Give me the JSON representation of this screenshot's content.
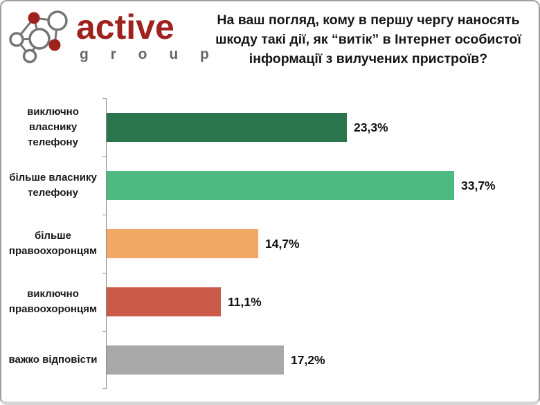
{
  "logo": {
    "brand": "active",
    "sub": "g r o u p",
    "brand_color": "#9e221e",
    "sub_color": "#666666",
    "icon": "network-nodes-icon",
    "icon_node_color": "#9e221e",
    "icon_line_color": "#757575"
  },
  "title": {
    "line1": "На ваш погляд, кому в першу чергу наносять",
    "line2": "шкоду такі дії, як “витік” в Інтернет особистої",
    "line3": "інформації з вилучених пристроїв?"
  },
  "chart_data": {
    "type": "bar",
    "orientation": "horizontal",
    "categories": [
      "виключно власнику телефону",
      "більше власнику телефону",
      "більше правоохоронцям",
      "виключно правоохоронцям",
      "важко відповісти"
    ],
    "values": [
      23.3,
      33.7,
      14.7,
      11.1,
      17.2
    ],
    "value_labels": [
      "23,3%",
      "33,7%",
      "14,7%",
      "11,1%",
      "17,2%"
    ],
    "bar_colors": [
      "#2a754c",
      "#4eba82",
      "#f2a967",
      "#ca5b4a",
      "#a9a9a9"
    ],
    "title": "На ваш погляд, кому в першу чергу наносять шкоду такі дії, як “витік” в Інтернет особистої інформації з вилучених пристроїв?",
    "xlabel": "",
    "ylabel": "",
    "xlim": [
      0,
      40
    ],
    "grid": false,
    "legend": null,
    "axis_color": "#8a8a8a"
  }
}
